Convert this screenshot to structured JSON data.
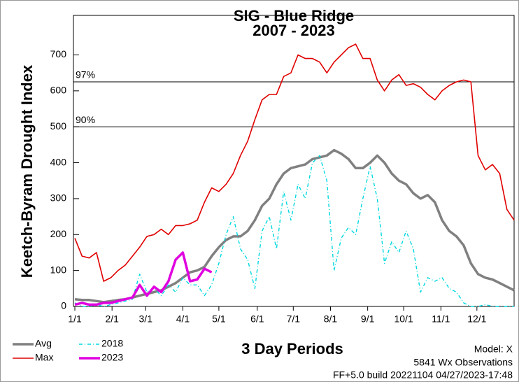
{
  "chart_data": {
    "type": "line",
    "title": "SIG - Blue Ridge",
    "subtitle": "2007 - 2023",
    "ylabel": "Keetch-Byram Drought Index",
    "xlabel": "3 Day Periods",
    "notes": [
      "Model: X",
      "5841 Wx Observations",
      "FF+5.0 build 20221104 04/27/2023-17:48"
    ],
    "xlim": [
      0,
      122
    ],
    "ylim": [
      0,
      810
    ],
    "yticks": [
      0,
      100,
      200,
      300,
      400,
      500,
      600,
      700
    ],
    "xticks": [
      {
        "value": 0,
        "label": "1/1"
      },
      {
        "value": 10.33,
        "label": "2/1"
      },
      {
        "value": 19.67,
        "label": "3/1"
      },
      {
        "value": 30,
        "label": "4/1"
      },
      {
        "value": 40,
        "label": "5/1"
      },
      {
        "value": 50.67,
        "label": "6/1"
      },
      {
        "value": 60.67,
        "label": "7/1"
      },
      {
        "value": 71,
        "label": "8/1"
      },
      {
        "value": 81.33,
        "label": "9/1"
      },
      {
        "value": 91.33,
        "label": "10/1"
      },
      {
        "value": 101.67,
        "label": "11/1"
      },
      {
        "value": 111.67,
        "label": "12/1"
      }
    ],
    "grid": false,
    "reference_lines": [
      {
        "value": 625,
        "label": "97%"
      },
      {
        "value": 500,
        "label": "90%"
      }
    ],
    "legend": "bottom-left",
    "x": [
      0,
      2,
      4,
      6,
      8,
      10,
      12,
      14,
      16,
      18,
      20,
      22,
      24,
      26,
      28,
      30,
      32,
      34,
      36,
      38,
      40,
      42,
      44,
      46,
      48,
      50,
      52,
      54,
      56,
      58,
      60,
      62,
      64,
      66,
      68,
      70,
      72,
      74,
      76,
      78,
      80,
      82,
      84,
      86,
      88,
      90,
      92,
      94,
      96,
      98,
      100,
      102,
      104,
      106,
      108,
      110,
      112,
      114,
      116,
      118,
      120,
      122
    ],
    "series": [
      {
        "name": "Avg",
        "color": "#808080",
        "line_style": "thick",
        "values": [
          20,
          18,
          18,
          15,
          12,
          15,
          18,
          20,
          25,
          30,
          35,
          40,
          45,
          55,
          65,
          80,
          95,
          100,
          110,
          140,
          165,
          185,
          195,
          195,
          210,
          240,
          280,
          300,
          340,
          370,
          385,
          390,
          395,
          410,
          415,
          420,
          435,
          425,
          410,
          385,
          385,
          400,
          420,
          400,
          370,
          350,
          340,
          315,
          300,
          310,
          290,
          240,
          210,
          195,
          170,
          120,
          90,
          80,
          75,
          65,
          55,
          45
        ]
      },
      {
        "name": "Max",
        "color": "#e00000",
        "line_style": "thin",
        "values": [
          190,
          140,
          135,
          150,
          70,
          80,
          100,
          115,
          140,
          165,
          195,
          200,
          215,
          200,
          225,
          225,
          230,
          240,
          290,
          330,
          320,
          340,
          370,
          420,
          460,
          520,
          575,
          590,
          590,
          640,
          650,
          700,
          690,
          690,
          680,
          650,
          680,
          700,
          720,
          730,
          690,
          690,
          630,
          600,
          630,
          645,
          615,
          620,
          610,
          590,
          575,
          600,
          615,
          625,
          630,
          625,
          420,
          380,
          395,
          370,
          270,
          240
        ]
      },
      {
        "name": "2018",
        "color": "#00d8e0",
        "line_style": "dashdot",
        "values": [
          10,
          0,
          0,
          5,
          0,
          5,
          10,
          15,
          20,
          90,
          40,
          50,
          30,
          60,
          40,
          80,
          60,
          60,
          30,
          60,
          120,
          200,
          250,
          160,
          130,
          50,
          210,
          250,
          160,
          320,
          240,
          340,
          300,
          400,
          420,
          350,
          100,
          190,
          220,
          200,
          300,
          390,
          300,
          120,
          180,
          150,
          210,
          160,
          40,
          80,
          70,
          80,
          50,
          40,
          10,
          0,
          0,
          5,
          0,
          0,
          0,
          0
        ]
      },
      {
        "name": "2023",
        "color": "#e000e0",
        "line_style": "thick",
        "values": [
          5,
          10,
          5,
          5,
          10,
          10,
          15,
          20,
          25,
          60,
          30,
          55,
          40,
          70,
          130,
          150,
          70,
          75,
          105,
          95,
          null,
          null,
          null,
          null,
          null,
          null,
          null,
          null,
          null,
          null,
          null,
          null,
          null,
          null,
          null,
          null,
          null,
          null,
          null,
          null,
          null,
          null,
          null,
          null,
          null,
          null,
          null,
          null,
          null,
          null,
          null,
          null,
          null,
          null,
          null,
          null,
          null,
          null,
          null,
          null,
          null,
          null
        ]
      }
    ]
  }
}
